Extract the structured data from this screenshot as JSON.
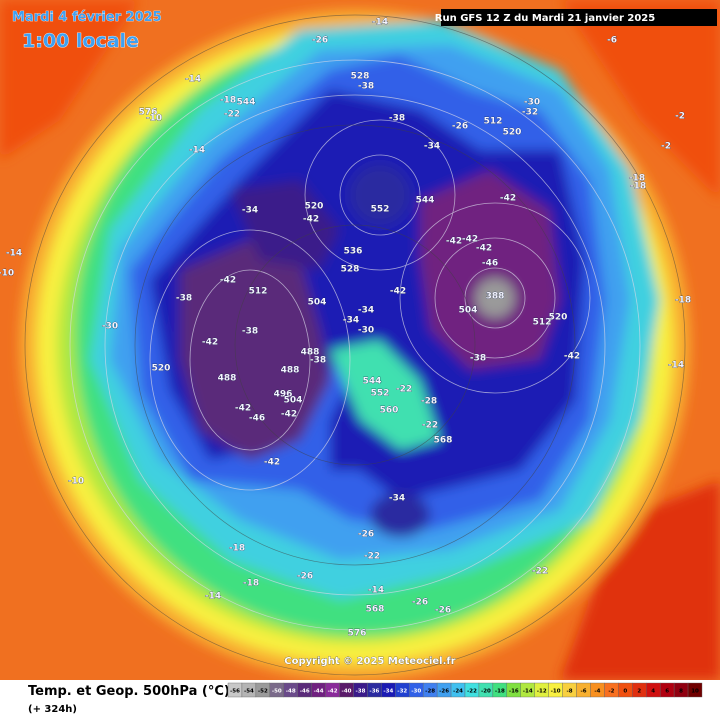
{
  "header": {
    "date": "Mardi 4 février 2025",
    "time": "1:00 locale",
    "run": "Run GFS 12 Z du Mardi 21 janvier 2025"
  },
  "footer": {
    "copyright": "Copyright © 2025 Meteociel.fr",
    "title": "Temp. et Geop. 500hPa (°C)",
    "lead": "(+ 324h)"
  },
  "legend": {
    "values": [
      -56,
      -54,
      -52,
      -50,
      -48,
      -46,
      -44,
      -42,
      -40,
      -38,
      -36,
      -34,
      -32,
      -30,
      -28,
      -26,
      -24,
      -22,
      -20,
      -18,
      -16,
      -14,
      -12,
      -10,
      -8,
      -6,
      -4,
      -2,
      0,
      2,
      4,
      6,
      8,
      10
    ],
    "colors": [
      "#c8c8c8",
      "#b4b4b4",
      "#9a9a9a",
      "#7a6a8a",
      "#6a4a8a",
      "#5a2a7a",
      "#702080",
      "#8a2a9a",
      "#5a1a6a",
      "#3a1a8a",
      "#2a2aa0",
      "#1a1ab4",
      "#2040d0",
      "#3060e8",
      "#4080f0",
      "#40a0f0",
      "#40c0f0",
      "#40e0e0",
      "#40e0b0",
      "#40e080",
      "#80e040",
      "#b0e840",
      "#e0f040",
      "#f8f040",
      "#f8d040",
      "#f8b030",
      "#f89020",
      "#f87020",
      "#f05010",
      "#e03010",
      "#d01010",
      "#b00010",
      "#900010",
      "#700000"
    ]
  },
  "map_labels": [
    528,
    -38,
    -38,
    -30,
    -32,
    512,
    520,
    -26,
    -34,
    -14,
    -18,
    544,
    576,
    -22,
    -10,
    -14,
    -34,
    520,
    -42,
    552,
    544,
    -42,
    536,
    528,
    -42,
    -42,
    -42,
    -42,
    -46,
    388,
    504,
    512,
    520,
    -42,
    -38,
    512,
    504,
    -34,
    -34,
    -30,
    -42,
    -38,
    -42,
    -38,
    488,
    488,
    -38,
    520,
    488,
    -42,
    -46,
    496,
    504,
    -42,
    -42,
    544,
    552,
    -22,
    -28,
    560,
    -22,
    568,
    -34,
    -26,
    -22,
    -18,
    -18,
    -14,
    -26,
    -14,
    568,
    -26,
    -26,
    576,
    -22,
    -10,
    -30,
    -18,
    -14,
    -18,
    -18,
    -2,
    -2,
    -6,
    -14,
    -10,
    -14,
    -26
  ]
}
